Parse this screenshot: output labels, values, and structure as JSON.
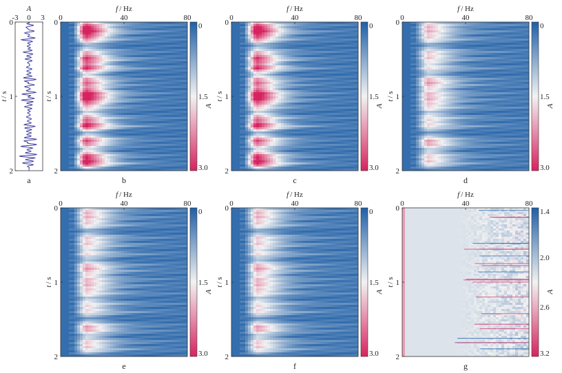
{
  "chart_data": [
    {
      "type": "line",
      "panel_label": "a",
      "xlabel_symbol": "A",
      "ylabel_symbol": "t",
      "ylabel_unit": "/ s",
      "xlim": [
        -3,
        3
      ],
      "ylim": [
        0,
        2
      ],
      "x_ticks": [
        "-3",
        "0",
        "3"
      ],
      "y_ticks": [
        "0",
        "1",
        "2"
      ],
      "series_color": "#3b3b9e",
      "amplitude_max": 2.6
    },
    {
      "type": "heatmap",
      "panel_label": "b",
      "pattern": "strong",
      "xlabel_symbol": "f",
      "xlabel_unit": "/ Hz",
      "ylabel_symbol": "t",
      "ylabel_unit": "/ s",
      "colorbar_label": "A",
      "xlim": [
        0,
        80
      ],
      "ylim": [
        0,
        2
      ],
      "x_ticks": [
        "0",
        "40",
        "80"
      ],
      "y_ticks": [
        "0",
        "1",
        "2"
      ],
      "colorbar_ticks": [
        "0",
        "1.5",
        "3.0"
      ],
      "colorbar_range": [
        0,
        3.0
      ]
    },
    {
      "type": "heatmap",
      "panel_label": "c",
      "pattern": "strong",
      "xlabel_symbol": "f",
      "xlabel_unit": "/ Hz",
      "ylabel_symbol": "t",
      "ylabel_unit": "/ s",
      "colorbar_label": "A",
      "xlim": [
        0,
        80
      ],
      "ylim": [
        0,
        2
      ],
      "x_ticks": [
        "0",
        "40",
        "80"
      ],
      "y_ticks": [
        "0",
        "1",
        "2"
      ],
      "colorbar_ticks": [
        "0",
        "1.5",
        "3.0"
      ],
      "colorbar_range": [
        0,
        3.0
      ]
    },
    {
      "type": "heatmap",
      "panel_label": "d",
      "pattern": "weak",
      "xlabel_symbol": "f",
      "xlabel_unit": "/ Hz",
      "ylabel_symbol": "t",
      "ylabel_unit": "/ s",
      "colorbar_label": "A",
      "xlim": [
        0,
        80
      ],
      "ylim": [
        0,
        2
      ],
      "x_ticks": [
        "0",
        "40",
        "80"
      ],
      "y_ticks": [
        "0",
        "1",
        "2"
      ],
      "colorbar_ticks": [
        "0",
        "1.5",
        "3.0"
      ],
      "colorbar_range": [
        0,
        3.0
      ]
    },
    {
      "type": "heatmap",
      "panel_label": "e",
      "pattern": "weak",
      "xlabel_symbol": "f",
      "xlabel_unit": "/ Hz",
      "ylabel_symbol": "t",
      "ylabel_unit": "/ s",
      "colorbar_label": "A",
      "xlim": [
        0,
        80
      ],
      "ylim": [
        0,
        2
      ],
      "x_ticks": [
        "0",
        "40",
        "80"
      ],
      "y_ticks": [
        "0",
        "1",
        "2"
      ],
      "colorbar_ticks": [
        "0",
        "1.5",
        "3.0"
      ],
      "colorbar_range": [
        0,
        3.0
      ]
    },
    {
      "type": "heatmap",
      "panel_label": "f",
      "pattern": "weak",
      "xlabel_symbol": "f",
      "xlabel_unit": "/ Hz",
      "ylabel_symbol": "t",
      "ylabel_unit": "/ s",
      "colorbar_label": "A",
      "xlim": [
        0,
        80
      ],
      "ylim": [
        0,
        2
      ],
      "x_ticks": [
        "0",
        "40",
        "80"
      ],
      "y_ticks": [
        "0",
        "1",
        "2"
      ],
      "colorbar_ticks": [
        "0",
        "1.5",
        "3.0"
      ],
      "colorbar_range": [
        0,
        3.0
      ]
    },
    {
      "type": "heatmap",
      "panel_label": "g",
      "pattern": "diff",
      "xlabel_symbol": "f",
      "xlabel_unit": "/ Hz",
      "ylabel_symbol": "t",
      "ylabel_unit": "/ s",
      "colorbar_label": "A",
      "xlim": [
        0,
        80
      ],
      "ylim": [
        0,
        2
      ],
      "x_ticks": [
        "0",
        "40",
        "80"
      ],
      "y_ticks": [
        "0",
        "1",
        "2"
      ],
      "colorbar_ticks": [
        "1.4",
        "2.0",
        "2.6",
        "3.2"
      ],
      "colorbar_range": [
        1.4,
        3.2
      ]
    }
  ],
  "colors": {
    "low": "#1f5fa6",
    "mid": "#f2f2f2",
    "high": "#d6235f",
    "trace": "#3b3b9e"
  }
}
